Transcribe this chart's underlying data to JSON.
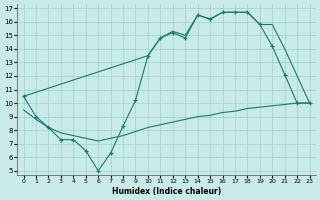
{
  "line1_x": [
    0,
    1,
    2,
    3,
    4,
    5,
    6,
    7,
    8,
    9,
    10,
    11,
    12,
    13,
    14,
    15,
    16,
    17,
    18,
    19,
    20,
    21,
    22,
    23
  ],
  "line1_y": [
    10.5,
    9.0,
    8.2,
    7.3,
    7.3,
    6.5,
    5.0,
    6.3,
    8.3,
    10.2,
    13.5,
    14.8,
    15.2,
    14.8,
    16.5,
    16.2,
    16.7,
    16.7,
    16.7,
    15.8,
    14.2,
    12.1,
    10.0,
    10.0
  ],
  "line2_x": [
    0,
    10,
    11,
    12,
    13,
    14,
    15,
    16,
    17,
    18,
    19,
    20,
    21,
    22,
    23
  ],
  "line2_y": [
    10.5,
    13.5,
    14.8,
    15.3,
    15.0,
    16.5,
    16.2,
    16.7,
    16.7,
    16.7,
    15.8,
    15.8,
    14.0,
    12.0,
    10.0
  ],
  "line3_x": [
    0,
    1,
    2,
    3,
    4,
    5,
    6,
    7,
    8,
    9,
    10,
    11,
    12,
    13,
    14,
    15,
    16,
    17,
    18,
    19,
    20,
    21,
    22,
    23
  ],
  "line3_y": [
    9.5,
    8.8,
    8.2,
    7.8,
    7.6,
    7.4,
    7.2,
    7.4,
    7.6,
    7.9,
    8.2,
    8.4,
    8.6,
    8.8,
    9.0,
    9.1,
    9.3,
    9.4,
    9.6,
    9.7,
    9.8,
    9.9,
    10.0,
    10.0
  ],
  "line_color": "#1a7a6e",
  "bg_color": "#c8eae8",
  "grid_color": "#9fcfcc",
  "xlabel": "Humidex (Indice chaleur)",
  "xlim": [
    -0.5,
    23.5
  ],
  "ylim": [
    4.7,
    17.3
  ],
  "yticks": [
    5,
    6,
    7,
    8,
    9,
    10,
    11,
    12,
    13,
    14,
    15,
    16,
    17
  ],
  "xticks": [
    0,
    1,
    2,
    3,
    4,
    5,
    6,
    7,
    8,
    9,
    10,
    11,
    12,
    13,
    14,
    15,
    16,
    17,
    18,
    19,
    20,
    21,
    22,
    23
  ]
}
